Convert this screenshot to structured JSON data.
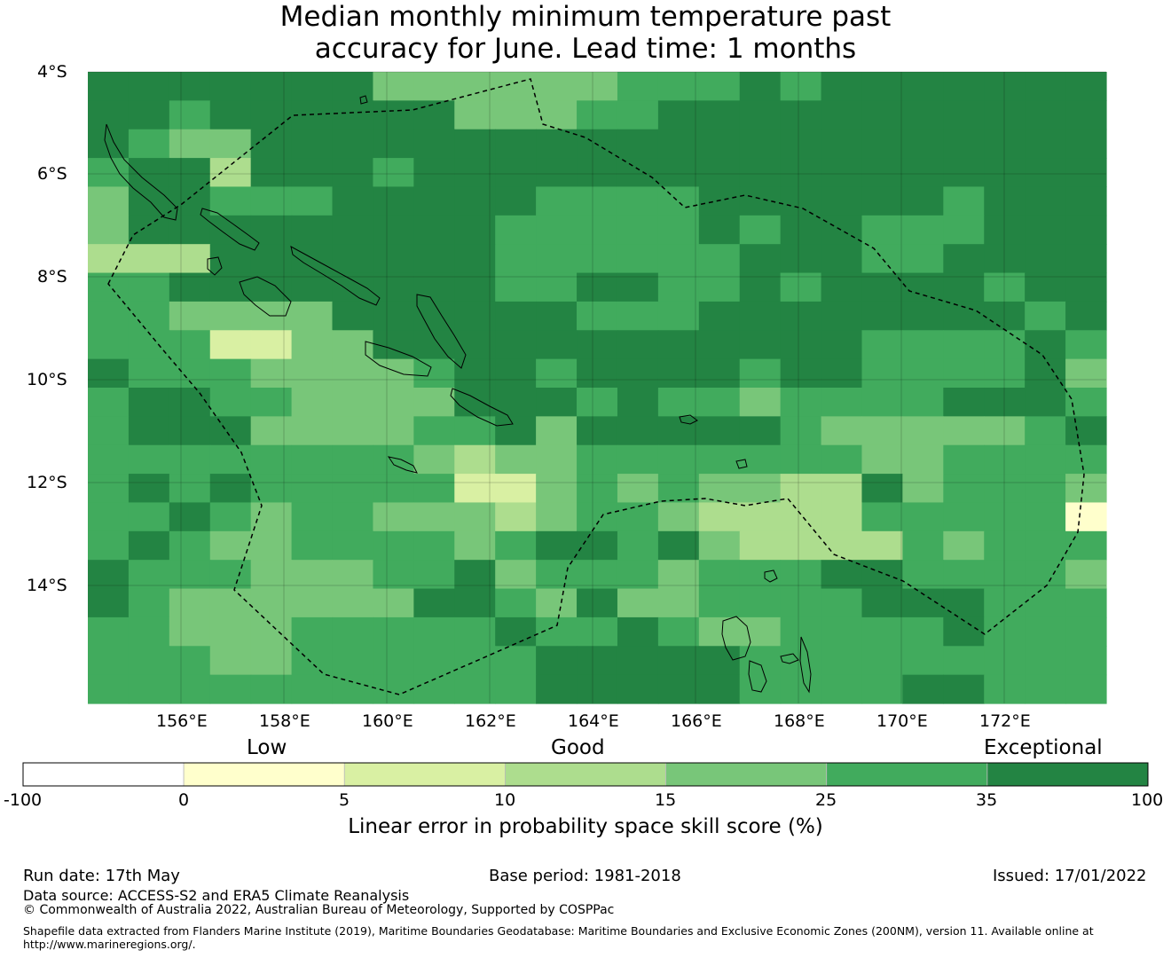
{
  "title_line1": "Median monthly minimum temperature past",
  "title_line2": "accuracy for June. Lead time: 1 months",
  "axes": {
    "lat_labels": [
      "4°S",
      "6°S",
      "8°S",
      "10°S",
      "12°S",
      "14°S"
    ],
    "lon_labels": [
      "156°E",
      "158°E",
      "160°E",
      "162°E",
      "164°E",
      "166°E",
      "168°E",
      "170°E",
      "172°E"
    ]
  },
  "colorbar": {
    "categories": [
      "Low",
      "Good",
      "Exceptional"
    ],
    "ticks": [
      "-100",
      "0",
      "5",
      "10",
      "15",
      "25",
      "35",
      "100"
    ],
    "colors": [
      "#ffffff",
      "#ffffcc",
      "#d9f0a3",
      "#addd8e",
      "#78c679",
      "#41ab5d",
      "#238443"
    ],
    "label": "Linear error in probability space skill score (%)"
  },
  "grid_classes": [
    "6666666444444555656666666",
    "6656666664445566666666666",
    "6544666666666666666666666",
    "5663666566666666666666666",
    "4665556666655556666665666",
    "4666666666555556566555666",
    "3336666666555555666556666",
    "5566666666556655656666566",
    "5544446666665556666666656",
    "5552244666666666666555565",
    "6555444456656666566555564",
    "5665544446665655455556665",
    "5666444455646666654444456",
    "5555555543445555555445555",
    "5656555552245454433645554",
    "5565455444345543333555551",
    "5654455554566564333354555",
    "6555444556455545556655554",
    "6544444466546445555666555",
    "5544455555655654455556555",
    "5554455555566666555555555",
    "5555555555566666555566555"
  ],
  "footer": {
    "run_date": "Run date: 17th May",
    "base_period": "Base period: 1981-2018",
    "issued": "Issued: 17/01/2022",
    "data_source": "Data source: ACCESS-S2 and ERA5 Climate Reanalysis",
    "copyright": "© Commonwealth of Australia 2022, Australian Bureau of Meteorology, Supported by COSPPac",
    "shapefile_line1": "Shapefile data extracted from Flanders Marine Institute (2019), Maritime Boundaries Geodatabase: Maritime Boundaries and Exclusive Economic Zones (200NM), version 11. Available online at",
    "shapefile_line2": "http://www.marineregions.org/."
  }
}
